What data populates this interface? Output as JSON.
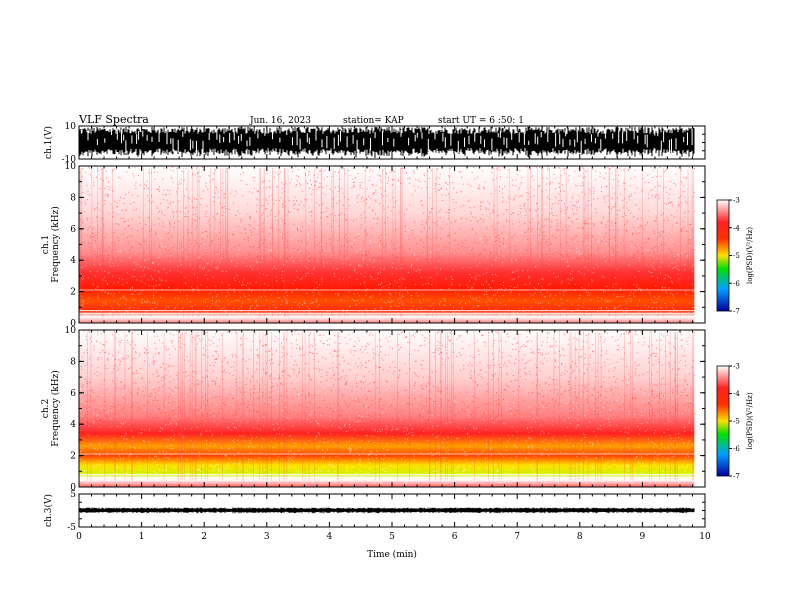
{
  "header": {
    "title": "VLF Spectra",
    "date": "Jun. 16, 2023",
    "station": "station= KAP",
    "start": "start UT =  6 :50: 1"
  },
  "chart_data": [
    {
      "type": "line",
      "panel": "ch1-waveform",
      "ylabel": "ch.1(V)",
      "ylim": [
        -10,
        10
      ],
      "yticks": [
        "10",
        "-10"
      ],
      "xlim": [
        0,
        10
      ],
      "x_data_end": 9.83
    },
    {
      "type": "heatmap",
      "panel": "ch1-spectrogram",
      "ylabel": "ch.1 Frequency (kHz)",
      "ylabel_top": "ch.1",
      "ylabel_bottom": "Frequency (kHz)",
      "ylim": [
        0,
        10
      ],
      "yticks": [
        "0",
        "2",
        "4",
        "6",
        "8",
        "10"
      ],
      "xlim": [
        0,
        10
      ],
      "x_data_end": 9.83,
      "colorbar": {
        "label": "log(PSD)(V²/Hz)",
        "range": [
          -7,
          -3
        ],
        "ticks": [
          "-3",
          "-4",
          "-5",
          "-6",
          "-7"
        ]
      }
    },
    {
      "type": "heatmap",
      "panel": "ch2-spectrogram",
      "ylabel": "ch.2 Frequency (kHz)",
      "ylabel_top": "ch.2",
      "ylabel_bottom": "Frequency (kHz)",
      "ylim": [
        0,
        10
      ],
      "yticks": [
        "0",
        "2",
        "4",
        "6",
        "8",
        "10"
      ],
      "xlim": [
        0,
        10
      ],
      "x_data_end": 9.83,
      "colorbar": {
        "label": "log(PSD)(V²/Hz)",
        "range": [
          -7,
          -3
        ],
        "ticks": [
          "-3",
          "-4",
          "-5",
          "-6",
          "-7"
        ]
      }
    },
    {
      "type": "line",
      "panel": "ch3-waveform",
      "ylabel": "ch.3(V)",
      "ylim": [
        -5,
        5
      ],
      "yticks": [
        "5",
        "-5"
      ],
      "xlim": [
        0,
        10
      ],
      "x_data_end": 9.83,
      "xticks": [
        "0",
        "1",
        "2",
        "3",
        "4",
        "5",
        "6",
        "7",
        "8",
        "9",
        "10"
      ],
      "xlabel": "Time (min)"
    }
  ]
}
